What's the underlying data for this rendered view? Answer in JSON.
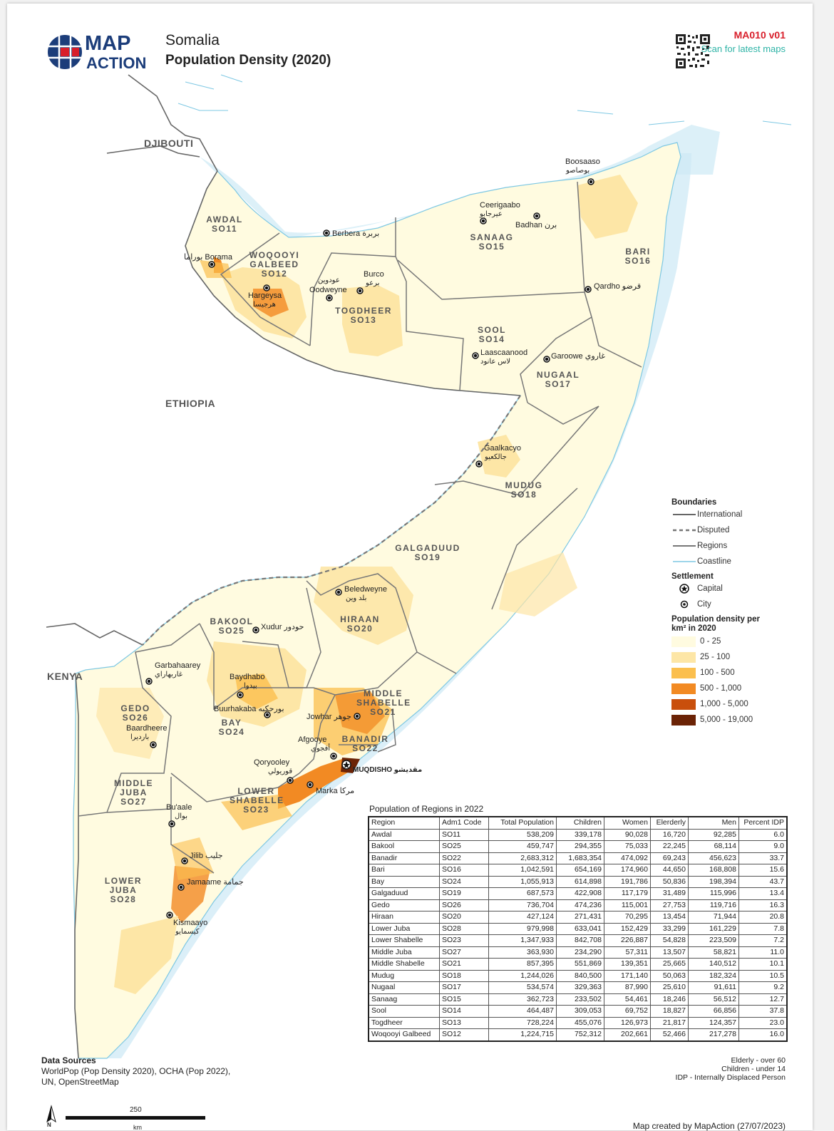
{
  "header": {
    "logo_line1": "MAP",
    "logo_line2": "ACTION",
    "title_country": "Somalia",
    "title_map": "Population Density (2020)",
    "map_id": "MA010 v01",
    "scan_text": "Scan for latest maps"
  },
  "countries": {
    "djibouti": "DJIBOUTI",
    "ethiopia": "ETHIOPIA",
    "kenya": "KENYA"
  },
  "regions": [
    {
      "key": "awdal",
      "name": "AWDAL",
      "code": "SO11"
    },
    {
      "key": "woqooyi",
      "name": "WOQOOYI GALBEED",
      "code": "SO12"
    },
    {
      "key": "togdheer",
      "name": "TOGDHEER",
      "code": "SO13"
    },
    {
      "key": "sool",
      "name": "SOOL",
      "code": "SO14"
    },
    {
      "key": "sanaag",
      "name": "SANAAG",
      "code": "SO15"
    },
    {
      "key": "bari",
      "name": "BARI",
      "code": "SO16"
    },
    {
      "key": "nugaal",
      "name": "NUGAAL",
      "code": "SO17"
    },
    {
      "key": "mudug",
      "name": "MUDUG",
      "code": "SO18"
    },
    {
      "key": "galgaduud",
      "name": "GALGADUUD",
      "code": "SO19"
    },
    {
      "key": "hiraan",
      "name": "HIRAAN",
      "code": "SO20"
    },
    {
      "key": "middleshabelle",
      "name": "MIDDLE SHABELLE",
      "code": "SO21"
    },
    {
      "key": "banadir",
      "name": "BANADIR",
      "code": "SO22"
    },
    {
      "key": "lowershabelle",
      "name": "LOWER SHABELLE",
      "code": "SO23"
    },
    {
      "key": "bay",
      "name": "BAY",
      "code": "SO24"
    },
    {
      "key": "bakool",
      "name": "BAKOOL",
      "code": "SO25"
    },
    {
      "key": "gedo",
      "name": "GEDO",
      "code": "SO26"
    },
    {
      "key": "middlejuba",
      "name": "MIDDLE JUBA",
      "code": "SO27"
    },
    {
      "key": "lowerjuba",
      "name": "LOWER JUBA",
      "code": "SO28"
    }
  ],
  "cities": {
    "boosaaso": {
      "name": "Boosaaso",
      "ar": "بوصاصو"
    },
    "ceerigaabo": {
      "name": "Ceerigaabo",
      "ar": "عيرجابو"
    },
    "badhan": {
      "name": "Badhan",
      "ar": "برن"
    },
    "berbera": {
      "name": "Berbera",
      "ar": "بربرة"
    },
    "borama": {
      "name": "Borama",
      "ar": "بوراما"
    },
    "hargeysa": {
      "name": "Hargeysa",
      "ar": "هرجيسا"
    },
    "oodweyne": {
      "name": "Oodweyne",
      "ar": "عودوين"
    },
    "burco": {
      "name": "Burco",
      "ar": "برعو"
    },
    "qardho": {
      "name": "Qardho",
      "ar": "قرضو"
    },
    "laascaanood": {
      "name": "Laascaanood",
      "ar": "لاس عانود"
    },
    "garoowe": {
      "name": "Garoowe",
      "ar": "غاروي"
    },
    "gaalkacyo": {
      "name": "Gaalkacyo",
      "ar": "جالكعيو"
    },
    "beledweyne": {
      "name": "Beledweyne",
      "ar": "بلد وين"
    },
    "xudur": {
      "name": "Xudur",
      "ar": "حودور"
    },
    "garbahaarey": {
      "name": "Garbahaarey",
      "ar": "غاربهاراي"
    },
    "baydhabo": {
      "name": "Baydhabo",
      "ar": "بيدوا"
    },
    "buurhakaba": {
      "name": "Buurhakaba",
      "ar": "بورحكبه"
    },
    "baardheere": {
      "name": "Baardheere",
      "ar": "بارديرا"
    },
    "jowhar": {
      "name": "Jowhar",
      "ar": "جوهر"
    },
    "afgooye": {
      "name": "Afgooye",
      "ar": "أفجوي"
    },
    "muqdisho": {
      "name": "MUQDISHO",
      "ar": "مقديشو"
    },
    "qoryooley": {
      "name": "Qoryooley",
      "ar": "قوريولي"
    },
    "marka": {
      "name": "Marka",
      "ar": "مركا"
    },
    "buaale": {
      "name": "Bu'aale",
      "ar": "بوال"
    },
    "jilib": {
      "name": "Jilib",
      "ar": "جليب"
    },
    "jamaame": {
      "name": "Jamaame",
      "ar": "جمامة"
    },
    "kismaayo": {
      "name": "Kismaayo",
      "ar": "كيسمايو"
    }
  },
  "legend": {
    "boundaries_title": "Boundaries",
    "boundaries": [
      "International",
      "Disputed",
      "Regions",
      "Coastline"
    ],
    "settlement_title": "Settlement",
    "settlements": [
      "Capital",
      "City"
    ],
    "density_title": "Population density per km² in 2020",
    "density_classes": [
      {
        "label": "0 - 25",
        "color": "#fffbe0"
      },
      {
        "label": "25 - 100",
        "color": "#fde6a6"
      },
      {
        "label": "100 - 500",
        "color": "#fbbf4e"
      },
      {
        "label": "500 - 1,000",
        "color": "#f28a23"
      },
      {
        "label": "1,000 - 5,000",
        "color": "#c94f0c"
      },
      {
        "label": "5,000 - 19,000",
        "color": "#6b2306"
      }
    ],
    "colors": {
      "land_other": "#ffffff",
      "sea": "#d6eef7",
      "coastline": "#7ec8e3",
      "boundary": "#666666"
    }
  },
  "table": {
    "title": "Population of Regions in 2022",
    "headers": [
      "Region",
      "Adm1 Code",
      "Total Population",
      "Children",
      "Women",
      "Elerderly",
      "Men",
      "Percent IDP"
    ],
    "rows": [
      [
        "Awdal",
        "SO11",
        "538,209",
        "339,178",
        "90,028",
        "16,720",
        "92,285",
        "6.0"
      ],
      [
        "Bakool",
        "SO25",
        "459,747",
        "294,355",
        "75,033",
        "22,245",
        "68,114",
        "9.0"
      ],
      [
        "Banadir",
        "SO22",
        "2,683,312",
        "1,683,354",
        "474,092",
        "69,243",
        "456,623",
        "33.7"
      ],
      [
        "Bari",
        "SO16",
        "1,042,591",
        "654,169",
        "174,960",
        "44,650",
        "168,808",
        "15.6"
      ],
      [
        "Bay",
        "SO24",
        "1,055,913",
        "614,898",
        "191,786",
        "50,836",
        "198,394",
        "43.7"
      ],
      [
        "Galgaduud",
        "SO19",
        "687,573",
        "422,908",
        "117,179",
        "31,489",
        "115,996",
        "13.4"
      ],
      [
        "Gedo",
        "SO26",
        "736,704",
        "474,236",
        "115,001",
        "27,753",
        "119,716",
        "16.3"
      ],
      [
        "Hiraan",
        "SO20",
        "427,124",
        "271,431",
        "70,295",
        "13,454",
        "71,944",
        "20.8"
      ],
      [
        "Lower Juba",
        "SO28",
        "979,998",
        "633,041",
        "152,429",
        "33,299",
        "161,229",
        "7.8"
      ],
      [
        "Lower Shabelle",
        "SO23",
        "1,347,933",
        "842,708",
        "226,887",
        "54,828",
        "223,509",
        "7.2"
      ],
      [
        "Middle Juba",
        "SO27",
        "363,930",
        "234,290",
        "57,311",
        "13,507",
        "58,821",
        "11.0"
      ],
      [
        "Middle Shabelle",
        "SO21",
        "857,395",
        "551,869",
        "139,351",
        "25,665",
        "140,512",
        "10.1"
      ],
      [
        "Mudug",
        "SO18",
        "1,244,026",
        "840,500",
        "171,140",
        "50,063",
        "182,324",
        "10.5"
      ],
      [
        "Nugaal",
        "SO17",
        "534,574",
        "329,363",
        "87,990",
        "25,610",
        "91,611",
        "9.2"
      ],
      [
        "Sanaag",
        "SO15",
        "362,723",
        "233,502",
        "54,461",
        "18,246",
        "56,512",
        "12.7"
      ],
      [
        "Sool",
        "SO14",
        "464,487",
        "309,053",
        "69,752",
        "18,827",
        "66,856",
        "37.8"
      ],
      [
        "Togdheer",
        "SO13",
        "728,224",
        "455,076",
        "126,973",
        "21,817",
        "124,357",
        "23.0"
      ],
      [
        "Woqooyi Galbeed",
        "SO12",
        "1,224,715",
        "752,312",
        "202,661",
        "52,466",
        "217,278",
        "16.0"
      ]
    ]
  },
  "notes": {
    "elderly": "Elderly - over 60",
    "children": "Children - under 14",
    "idp": "IDP - Internally Displaced Person"
  },
  "sources": {
    "title": "Data Sources",
    "line1": "WorldPop (Pop Density 2020), OCHA (Pop 2022),",
    "line2": "UN, OpenStreetMap"
  },
  "scale": {
    "value": "250",
    "unit": "km",
    "north": "N"
  },
  "credit": "Map created by MapAction (27/07/2023)"
}
